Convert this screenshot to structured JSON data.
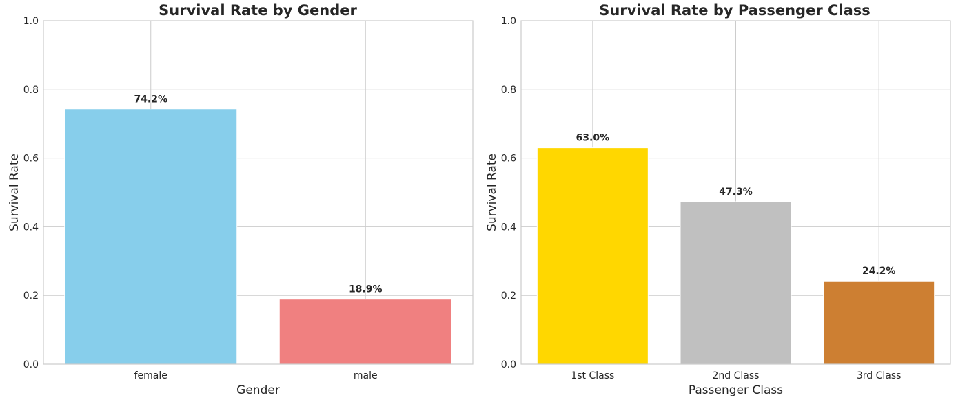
{
  "chart_data": [
    {
      "type": "bar",
      "title": "Survival Rate by Gender",
      "xlabel": "Gender",
      "ylabel": "Survival Rate",
      "categories": [
        "female",
        "male"
      ],
      "values": [
        0.742,
        0.189
      ],
      "data_labels": [
        "74.2%",
        "18.9%"
      ],
      "colors": [
        "#87ceeb",
        "#f08080"
      ],
      "ylim": [
        0,
        1.0
      ],
      "yticks": [
        "0.0",
        "0.2",
        "0.4",
        "0.6",
        "0.8",
        "1.0"
      ],
      "grid": true,
      "legend": "none"
    },
    {
      "type": "bar",
      "title": "Survival Rate by Passenger Class",
      "xlabel": "Passenger Class",
      "ylabel": "Survival Rate",
      "categories": [
        "1st Class",
        "2nd Class",
        "3rd Class"
      ],
      "values": [
        0.63,
        0.473,
        0.242
      ],
      "data_labels": [
        "63.0%",
        "47.3%",
        "24.2%"
      ],
      "colors": [
        "#ffd700",
        "#c0c0c0",
        "#cd7f32"
      ],
      "ylim": [
        0,
        1.0
      ],
      "yticks": [
        "0.0",
        "0.2",
        "0.4",
        "0.6",
        "0.8",
        "1.0"
      ],
      "grid": true,
      "legend": "none"
    }
  ]
}
